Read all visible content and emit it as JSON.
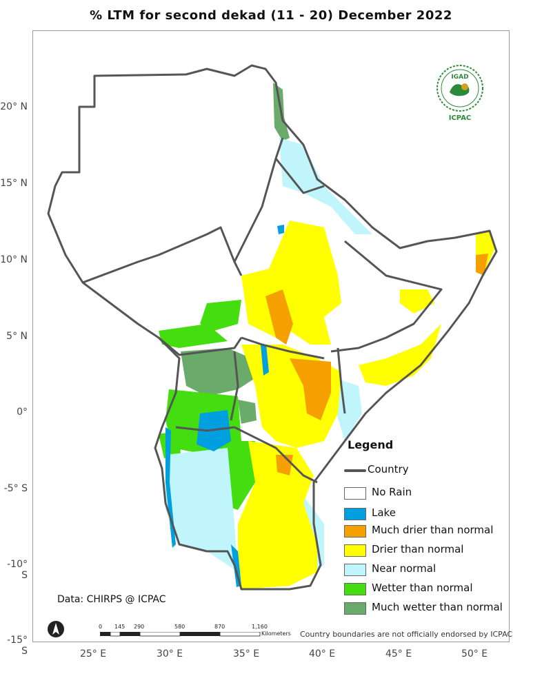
{
  "title": "% LTM    for second dekad (11 - 20) December 2022",
  "lat_labels": [
    {
      "text": "20° N",
      "lat": 20
    },
    {
      "text": "15° N",
      "lat": 15
    },
    {
      "text": "10° N",
      "lat": 10
    },
    {
      "text": "5° N",
      "lat": 5
    },
    {
      "text": "0°",
      "lat": 0
    },
    {
      "text": "-5° S",
      "lat": -5
    },
    {
      "text": "-10° S",
      "lat": -10
    },
    {
      "text": "-15° S",
      "lat": -15
    }
  ],
  "lon_labels": [
    {
      "text": "25° E",
      "lon": 25
    },
    {
      "text": "30° E",
      "lon": 30
    },
    {
      "text": "35° E",
      "lon": 35
    },
    {
      "text": "40° E",
      "lon": 40
    },
    {
      "text": "45° E",
      "lon": 45
    },
    {
      "text": "50° E",
      "lon": 50
    }
  ],
  "legend": {
    "title": "Legend",
    "country_label": "Country",
    "items": [
      {
        "label": "No Rain",
        "color": "#ffffff"
      },
      {
        "label": "Lake",
        "color": "#00a0e0"
      },
      {
        "label": "Much drier than normal",
        "color": "#f5a000"
      },
      {
        "label": "Drier than normal",
        "color": "#ffff00"
      },
      {
        "label": "Near normal",
        "color": "#bff5fb"
      },
      {
        "label": "Wetter than normal",
        "color": "#44dd10"
      },
      {
        "label": "Much wetter than normal",
        "color": "#6aaa6a"
      }
    ]
  },
  "data_credit": "Data: CHIRPS @ ICPAC",
  "scale_bar": {
    "labels": [
      "0",
      "145",
      "290",
      "580",
      "870",
      "1,160"
    ],
    "unit": "Kilometers"
  },
  "disclaimer": "Country boundaries are not officially endorsed by ICPAC",
  "logo": {
    "top_text": "IGAD",
    "bottom_text": "ICPAC",
    "color": "#2a8a3a"
  },
  "colors": {
    "country_border": "#555555",
    "no_rain": "#ffffff",
    "lake": "#00a0e0",
    "much_drier": "#f5a000",
    "drier": "#ffff00",
    "near_normal": "#bff5fb",
    "wetter": "#44dd10",
    "much_wetter": "#6aaa6a"
  }
}
